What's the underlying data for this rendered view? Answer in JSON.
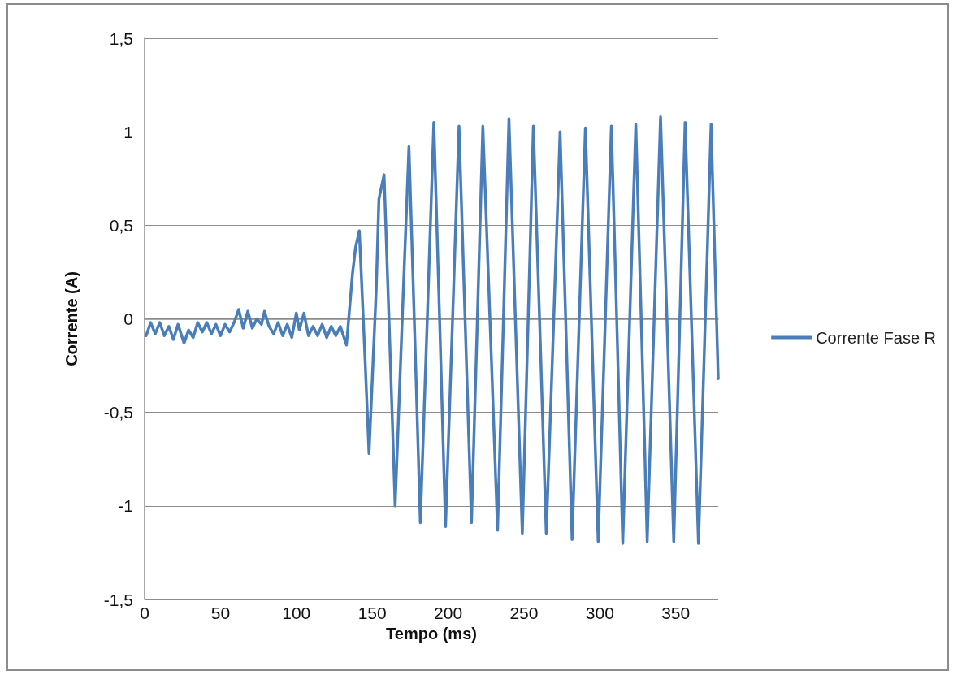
{
  "chart_data": {
    "type": "line",
    "xlabel": "Tempo (ms)",
    "ylabel": "Corrente (A)",
    "xlim": [
      0,
      378
    ],
    "xticks": [
      0,
      50,
      100,
      150,
      200,
      250,
      300,
      350
    ],
    "ylim": [
      -1.5,
      1.5
    ],
    "yticks": [
      {
        "value": 1.5,
        "label": "1,5"
      },
      {
        "value": 1,
        "label": "1"
      },
      {
        "value": 0.5,
        "label": "0,5"
      },
      {
        "value": 0,
        "label": "0"
      },
      {
        "value": -0.5,
        "label": "-0,5"
      },
      {
        "value": -1,
        "label": "-1"
      },
      {
        "value": -1.5,
        "label": "-1,5"
      }
    ],
    "grid": "y",
    "legend": "right",
    "marker": "none",
    "line_style": "solid",
    "series": [
      {
        "name": "Corrente Fase R",
        "color": "#4a7ebb",
        "x": [
          1,
          4,
          7,
          10,
          13,
          16,
          19,
          22,
          26,
          29,
          32,
          35,
          38,
          41,
          44,
          47,
          50,
          53,
          56,
          59,
          62,
          65,
          68,
          71,
          74,
          77,
          79,
          82,
          85,
          88,
          91,
          94,
          97,
          100,
          102,
          105,
          108,
          111,
          114,
          117,
          120,
          123,
          126,
          129,
          133,
          134.5,
          137,
          139,
          141.5,
          142.5,
          145.2,
          147.9,
          152.6,
          154.4,
          157.8,
          161.5,
          165.1,
          169.6,
          174.2,
          178,
          181.7,
          186.2,
          190.6,
          194.5,
          198.3,
          202.8,
          207.2,
          211.3,
          215.4,
          219.2,
          222.9,
          227.8,
          232.6,
          236.4,
          240.1,
          244.5,
          248.9,
          252.6,
          256.2,
          260.5,
          264.7,
          269.3,
          273.8,
          277.8,
          281.7,
          286.1,
          290.5,
          294.7,
          298.9,
          303.3,
          307.6,
          311.4,
          315.1,
          319.4,
          323.7,
          327.5,
          331.2,
          335.6,
          340,
          344.4,
          348.7,
          352.5,
          356.2,
          360.6,
          365,
          369.2,
          373.3,
          378
        ],
        "values": [
          -0.09,
          -0.02,
          -0.08,
          -0.02,
          -0.09,
          -0.04,
          -0.11,
          -0.03,
          -0.13,
          -0.06,
          -0.1,
          -0.02,
          -0.07,
          -0.02,
          -0.08,
          -0.03,
          -0.09,
          -0.03,
          -0.07,
          -0.02,
          0.05,
          -0.05,
          0.04,
          -0.05,
          0,
          -0.03,
          0.04,
          -0.04,
          -0.08,
          -0.02,
          -0.09,
          -0.03,
          -0.1,
          0.03,
          -0.06,
          0.03,
          -0.09,
          -0.04,
          -0.09,
          -0.03,
          -0.1,
          -0.04,
          -0.09,
          -0.04,
          -0.14,
          0,
          0.24,
          0.38,
          0.47,
          0.29,
          -0.2,
          -0.72,
          0.15,
          0.64,
          0.77,
          -0.11,
          -1,
          -0.04,
          0.92,
          -0.08,
          -1.09,
          -0.02,
          1.05,
          -0.03,
          -1.11,
          -0.04,
          1.03,
          -0.03,
          -1.09,
          -0.03,
          1.03,
          -0.05,
          -1.13,
          -0.03,
          1.07,
          -0.04,
          -1.15,
          -0.06,
          1.03,
          -0.06,
          -1.15,
          -0.08,
          1,
          -0.09,
          -1.18,
          -0.08,
          1.02,
          -0.08,
          -1.19,
          -0.08,
          1.03,
          -0.08,
          -1.2,
          -0.08,
          1.04,
          -0.07,
          -1.19,
          -0.05,
          1.08,
          -0.05,
          -1.19,
          -0.07,
          1.05,
          -0.07,
          -1.2,
          -0.08,
          1.04,
          -0.32
        ]
      }
    ]
  }
}
